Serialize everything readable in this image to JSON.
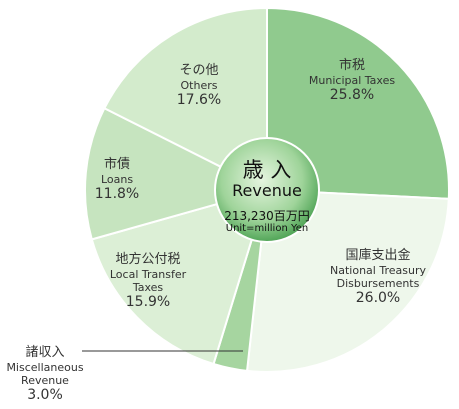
{
  "chart_data": {
    "type": "pie",
    "center_title": "歳 入",
    "center_subtitle": "Revenue",
    "center_total": "213,230百万円",
    "center_unit": "Unit=million Yen",
    "categories_ja": [
      "市税",
      "国庫支出金",
      "諸収入",
      "地方公付税",
      "市債",
      "その他"
    ],
    "categories": [
      "Municipal Taxes",
      "National Treasury Disbursements",
      "Miscellaneous Revenue",
      "Local Transfer Taxes",
      "Loans",
      "Others"
    ],
    "values": [
      25.8,
      26.0,
      3.0,
      15.9,
      11.8,
      17.6
    ],
    "value_labels": [
      "25.8%",
      "26.0%",
      "3.0%",
      "15.9%",
      "11.8%",
      "17.6%"
    ],
    "colors": [
      "#90ca8e",
      "#eef7eb",
      "#a6d5a0",
      "#dcefd6",
      "#c6e4bf",
      "#d3ebcc"
    ]
  }
}
